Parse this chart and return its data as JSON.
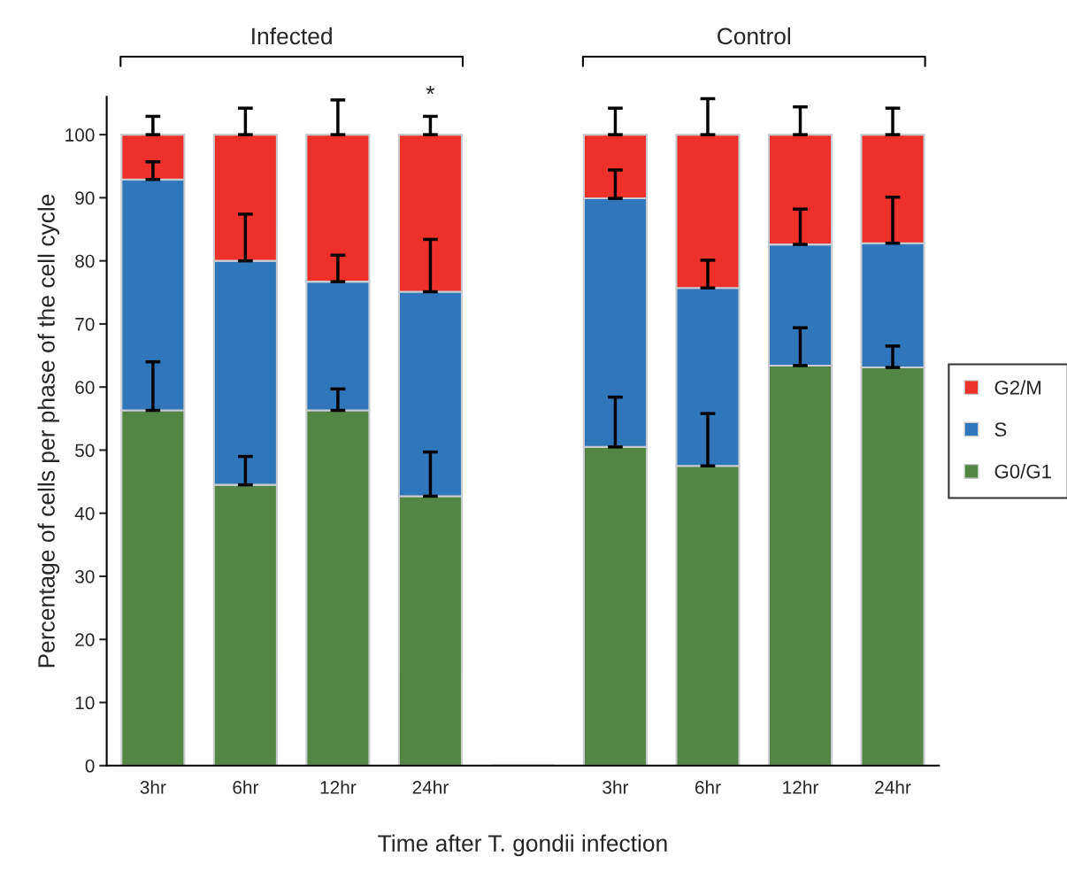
{
  "chart_data": {
    "type": "bar",
    "stacked": true,
    "categories": [
      "3hr",
      "6hr",
      "12hr",
      "24hr",
      null,
      "3hr",
      "6hr",
      "12hr",
      "24hr"
    ],
    "series": [
      {
        "name": "G0/G1",
        "color": "#538642",
        "values": [
          56.3,
          44.5,
          56.3,
          42.7,
          null,
          50.5,
          47.5,
          63.4,
          63.1
        ],
        "errors": [
          [
            56.3,
            64.0
          ],
          [
            44.5,
            49.0
          ],
          [
            56.3,
            59.7
          ],
          [
            42.7,
            49.7
          ],
          null,
          [
            50.5,
            58.4
          ],
          [
            47.5,
            55.8
          ],
          [
            63.4,
            69.4
          ],
          [
            63.1,
            66.5
          ]
        ]
      },
      {
        "name": "S",
        "color": "#3076bb",
        "values": [
          36.6,
          35.5,
          20.4,
          32.4,
          null,
          39.4,
          28.2,
          19.2,
          19.7
        ],
        "errors": [
          [
            92.9,
            95.7
          ],
          [
            80.0,
            87.4
          ],
          [
            76.7,
            80.9
          ],
          [
            75.1,
            83.4
          ],
          null,
          [
            89.9,
            94.4
          ],
          [
            75.7,
            80.1
          ],
          [
            82.6,
            88.2
          ],
          [
            82.8,
            90.1
          ]
        ]
      },
      {
        "name": "G2/M",
        "color": "#ee302a",
        "values": [
          7.1,
          20.0,
          23.3,
          24.9,
          null,
          10.1,
          24.3,
          17.4,
          17.2
        ],
        "errors": [
          [
            100,
            102.9
          ],
          [
            100,
            104.2
          ],
          [
            100,
            105.5
          ],
          [
            100,
            102.9
          ],
          null,
          [
            100,
            104.2
          ],
          [
            100,
            105.7
          ],
          [
            100,
            104.4
          ],
          [
            100,
            104.2
          ]
        ]
      }
    ],
    "xlabel": "Time after T. gondii infection",
    "ylabel": "Percentage of cells per phase of the cell cycle",
    "ylim": [
      0,
      106
    ],
    "yticks": [
      0,
      10,
      20,
      30,
      40,
      50,
      60,
      70,
      80,
      90,
      100
    ],
    "annotations": [
      "Infected",
      "Control",
      "*"
    ],
    "grid": false,
    "legend": "right"
  }
}
